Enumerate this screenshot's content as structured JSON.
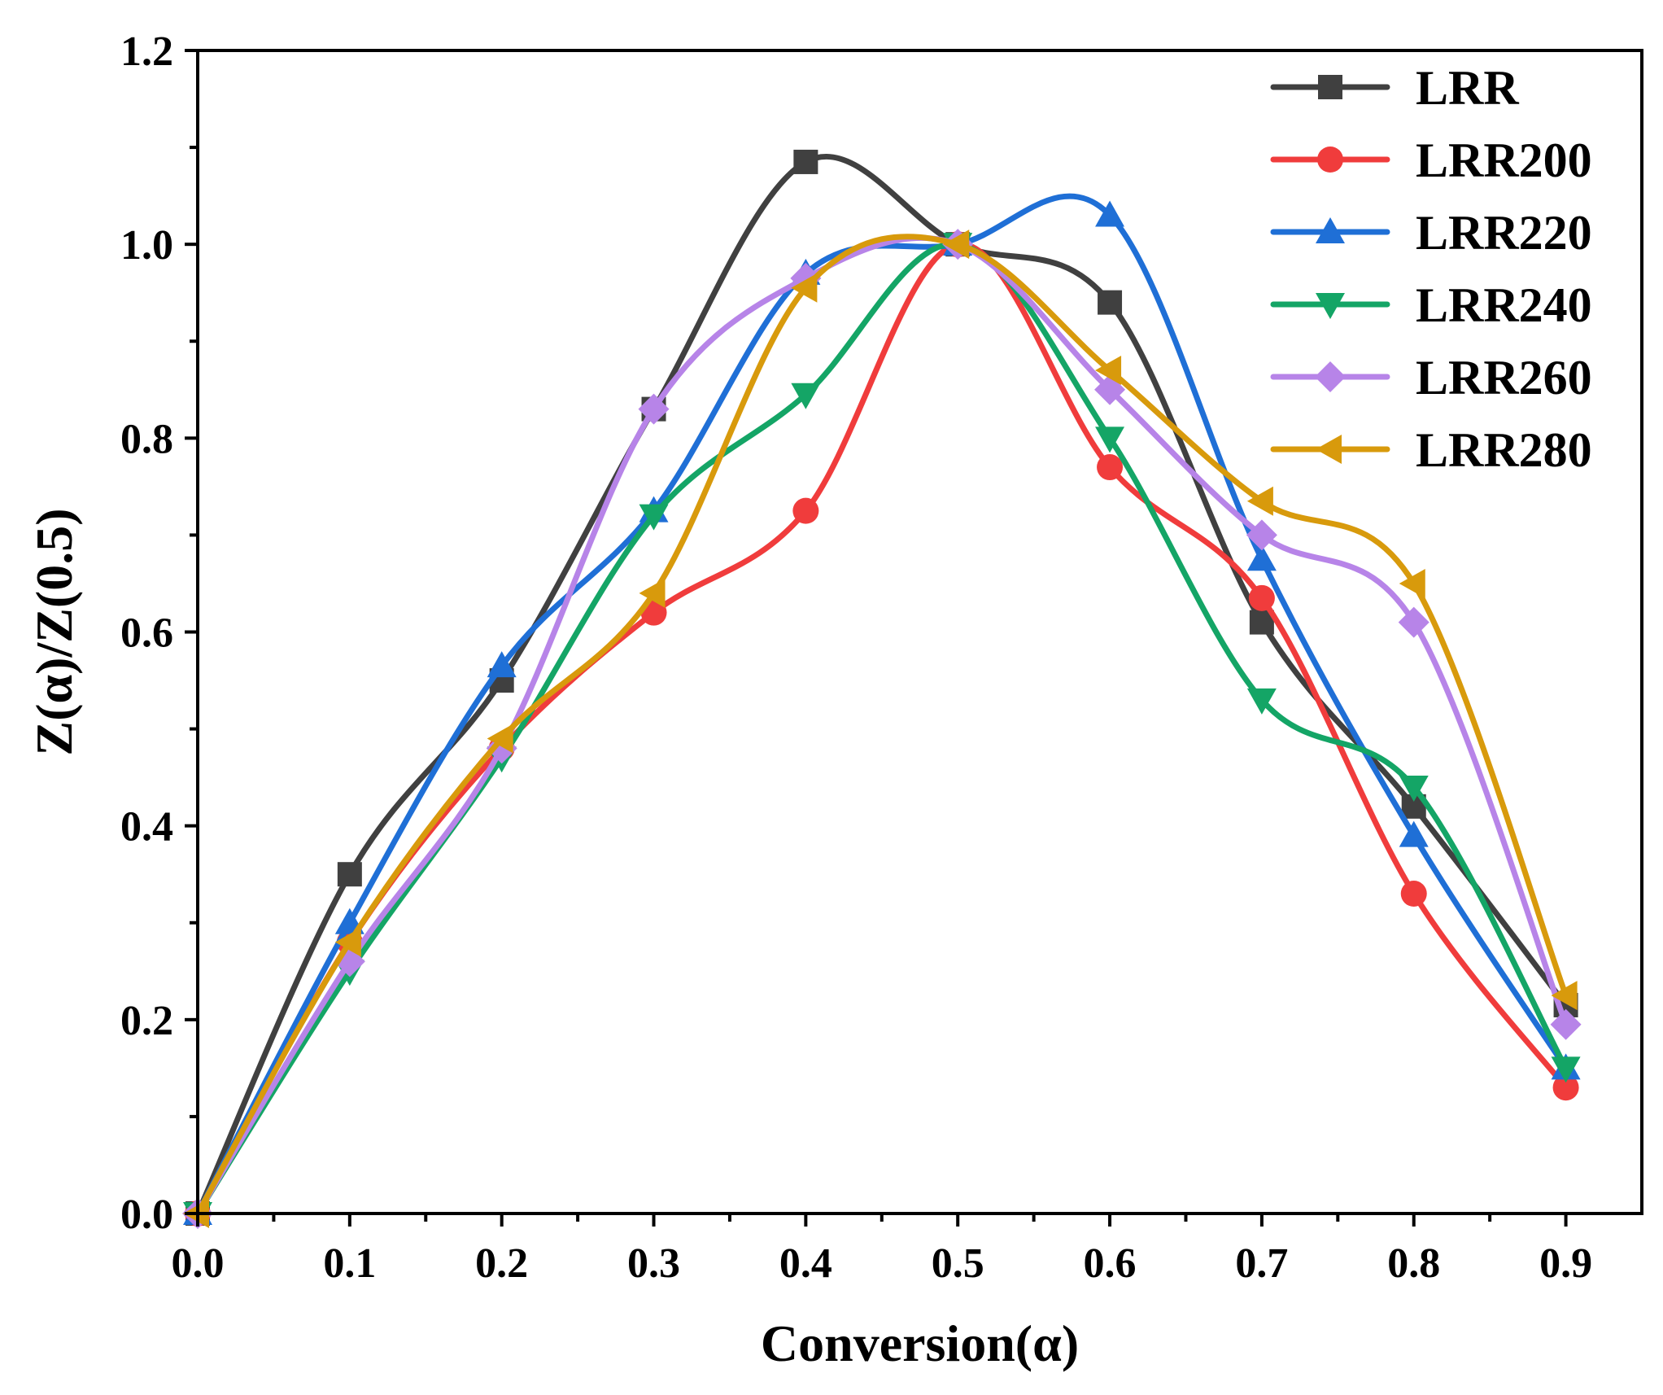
{
  "chart_data": {
    "type": "line",
    "title": "",
    "xlabel": "Conversion(α)",
    "ylabel": "Z(α)/Z(0.5)",
    "xlim": [
      0.0,
      0.95
    ],
    "ylim": [
      0.0,
      1.2
    ],
    "x": [
      0.0,
      0.1,
      0.2,
      0.3,
      0.4,
      0.5,
      0.6,
      0.7,
      0.8,
      0.9
    ],
    "x_ticks": [
      0.0,
      0.1,
      0.2,
      0.3,
      0.4,
      0.5,
      0.6,
      0.7,
      0.8,
      0.9
    ],
    "x_tick_labels": [
      "0.0",
      "0.1",
      "0.2",
      "0.3",
      "0.4",
      "0.5",
      "0.6",
      "0.7",
      "0.8",
      "0.9"
    ],
    "y_ticks": [
      0.0,
      0.2,
      0.4,
      0.6,
      0.8,
      1.0,
      1.2
    ],
    "y_tick_labels": [
      "0.0",
      "0.2",
      "0.4",
      "0.6",
      "0.8",
      "1.0",
      "1.2"
    ],
    "grid": false,
    "legend_position": "top-right",
    "series": [
      {
        "name": "LRR",
        "marker": "square",
        "color": "#404040",
        "values": [
          0.0,
          0.35,
          0.55,
          0.83,
          1.085,
          1.0,
          0.94,
          0.61,
          0.42,
          0.215
        ]
      },
      {
        "name": "LRR200",
        "marker": "circle",
        "color": "#f03c3c",
        "values": [
          0.0,
          0.28,
          0.48,
          0.62,
          0.725,
          1.0,
          0.77,
          0.635,
          0.33,
          0.13
        ]
      },
      {
        "name": "LRR220",
        "marker": "triangle-up",
        "color": "#1f6fd6",
        "values": [
          0.0,
          0.3,
          0.565,
          0.725,
          0.97,
          1.0,
          1.03,
          0.675,
          0.39,
          0.15
        ]
      },
      {
        "name": "LRR240",
        "marker": "triangle-down",
        "color": "#14a566",
        "values": [
          0.0,
          0.25,
          0.47,
          0.72,
          0.845,
          1.0,
          0.8,
          0.53,
          0.44,
          0.15
        ]
      },
      {
        "name": "LRR260",
        "marker": "diamond",
        "color": "#b784e8",
        "values": [
          0.0,
          0.26,
          0.48,
          0.83,
          0.965,
          1.0,
          0.85,
          0.7,
          0.61,
          0.195
        ]
      },
      {
        "name": "LRR280",
        "marker": "triangle-left",
        "color": "#d89a0c",
        "values": [
          0.0,
          0.28,
          0.49,
          0.64,
          0.955,
          1.0,
          0.87,
          0.735,
          0.65,
          0.225
        ]
      }
    ]
  }
}
